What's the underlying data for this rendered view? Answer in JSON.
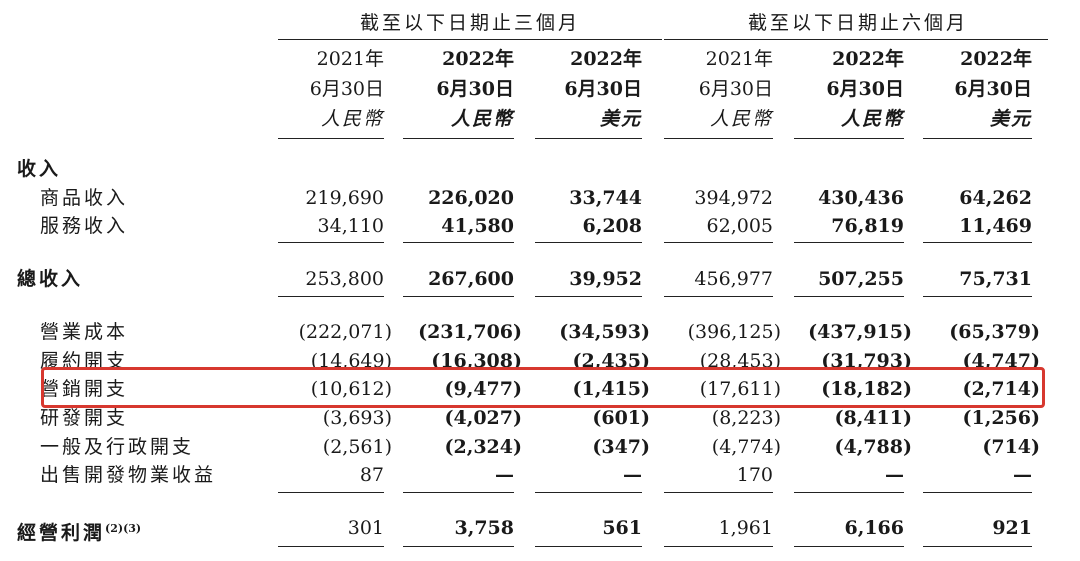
{
  "groups": [
    {
      "label": "截至以下日期止三個月"
    },
    {
      "label": "截至以下日期止六個月"
    }
  ],
  "columns": [
    {
      "year": "2021年",
      "date": "6月30日",
      "currency": "人民幣",
      "bold": false
    },
    {
      "year": "2022年",
      "date": "6月30日",
      "currency": "人民幣",
      "bold": true
    },
    {
      "year": "2022年",
      "date": "6月30日",
      "currency": "美元",
      "bold": true
    },
    {
      "year": "2021年",
      "date": "6月30日",
      "currency": "人民幣",
      "bold": false
    },
    {
      "year": "2022年",
      "date": "6月30日",
      "currency": "人民幣",
      "bold": true
    },
    {
      "year": "2022年",
      "date": "6月30日",
      "currency": "美元",
      "bold": true
    }
  ],
  "rows": [
    {
      "label": "收入",
      "values": []
    },
    {
      "label": "商品收入",
      "values": [
        "219,690",
        "226,020",
        "33,744",
        "394,972",
        "430,436",
        "64,262"
      ]
    },
    {
      "label": "服務收入",
      "values": [
        "34,110",
        "41,580",
        "6,208",
        "62,005",
        "76,819",
        "11,469"
      ]
    },
    {
      "label": "總收入",
      "values": [
        "253,800",
        "267,600",
        "39,952",
        "456,977",
        "507,255",
        "75,731"
      ]
    },
    {
      "label": "營業成本",
      "values": [
        "(222,071)",
        "(231,706)",
        "(34,593)",
        "(396,125)",
        "(437,915)",
        "(65,379)"
      ]
    },
    {
      "label": "履約開支",
      "values": [
        "(14,649)",
        "(16,308)",
        "(2,435)",
        "(28,453)",
        "(31,793)",
        "(4,747)"
      ]
    },
    {
      "label": "營銷開支",
      "values": [
        "(10,612)",
        "(9,477)",
        "(1,415)",
        "(17,611)",
        "(18,182)",
        "(2,714)"
      ]
    },
    {
      "label": "研發開支",
      "values": [
        "(3,693)",
        "(4,027)",
        "(601)",
        "(8,223)",
        "(8,411)",
        "(1,256)"
      ]
    },
    {
      "label": "一般及行政開支",
      "values": [
        "(2,561)",
        "(2,324)",
        "(347)",
        "(4,774)",
        "(4,788)",
        "(714)"
      ]
    },
    {
      "label": "出售開發物業收益",
      "values": [
        "87",
        "—",
        "—",
        "170",
        "—",
        "—"
      ]
    },
    {
      "label": "經營利潤",
      "note": "(2)(3)",
      "values": [
        "301",
        "3,758",
        "561",
        "1,961",
        "6,166",
        "921"
      ]
    }
  ],
  "highlight": {
    "row": "營銷開支",
    "color": "#d7382f"
  }
}
